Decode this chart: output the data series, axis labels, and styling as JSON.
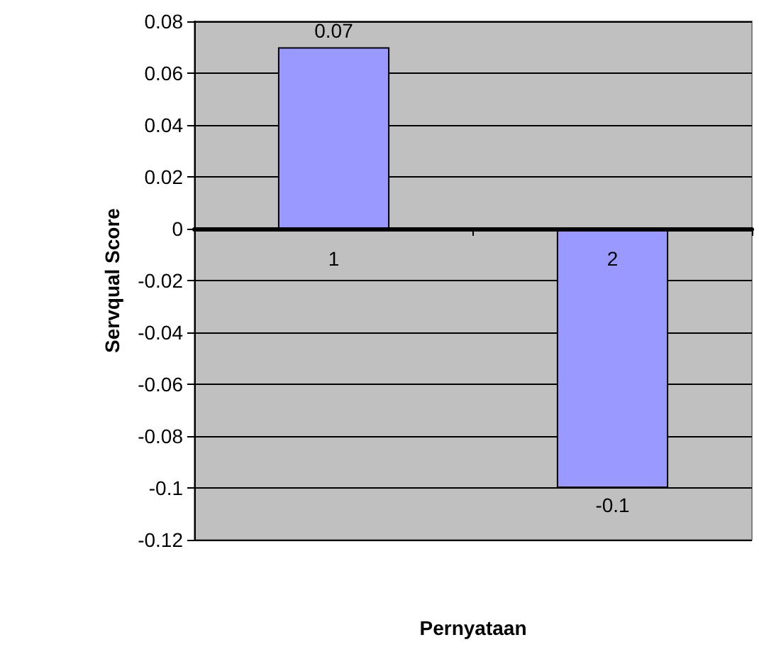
{
  "chart_data": {
    "type": "bar",
    "xlabel": "Pernyataan",
    "ylabel": "Servqual Score",
    "categories": [
      "1",
      "2"
    ],
    "values": [
      0.07,
      -0.1
    ],
    "color": "#9999ff",
    "ylim": [
      -0.12,
      0.08
    ],
    "yticks": [
      -0.12,
      -0.1,
      -0.08,
      -0.06,
      -0.04,
      -0.02,
      0,
      0.02,
      0.04,
      0.06,
      0.08
    ],
    "grid": "y",
    "data_labels": true
  }
}
